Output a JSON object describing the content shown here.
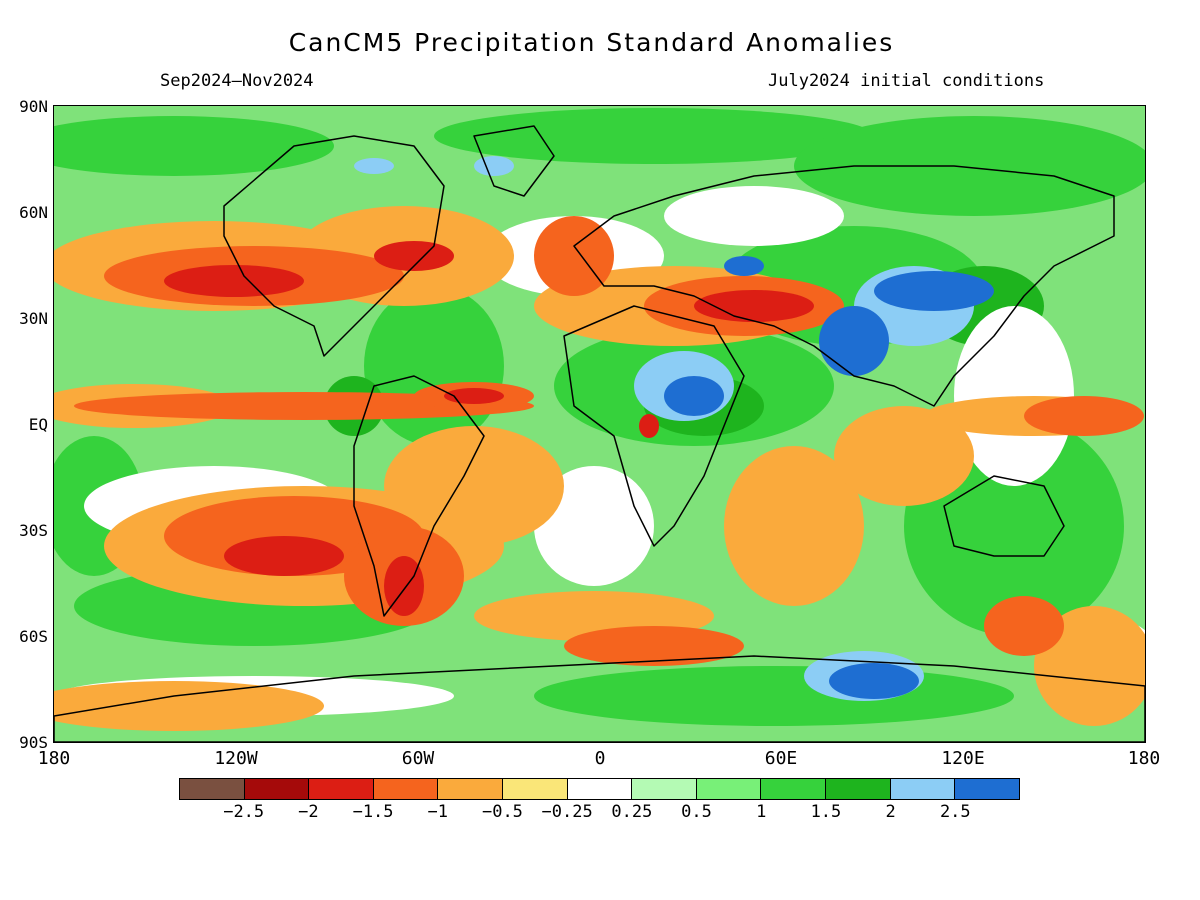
{
  "title": "CanCM5 Precipitation Standard Anomalies",
  "subtitle_left": "Sep2024–Nov2024",
  "subtitle_right": "July2024 initial conditions",
  "y_ticks": [
    "90N",
    "60N",
    "30N",
    "EQ",
    "30S",
    "60S",
    "90S"
  ],
  "x_ticks": [
    "180",
    "120W",
    "60W",
    "0",
    "60E",
    "120E",
    "180"
  ],
  "colorbar": {
    "colors": [
      "#7a5040",
      "#a50a0a",
      "#dc1e14",
      "#f5641e",
      "#faaa3c",
      "#fae678",
      "#ffffff",
      "#b4fab4",
      "#78f078",
      "#36d23c",
      "#1eb41e",
      "#8ccdf5",
      "#1e6ed2"
    ],
    "labels": [
      "−2.5",
      "−2",
      "−1.5",
      "−1",
      "−0.5",
      "−0.25",
      "0.25",
      "0.5",
      "1",
      "1.5",
      "2",
      "2.5"
    ]
  }
}
